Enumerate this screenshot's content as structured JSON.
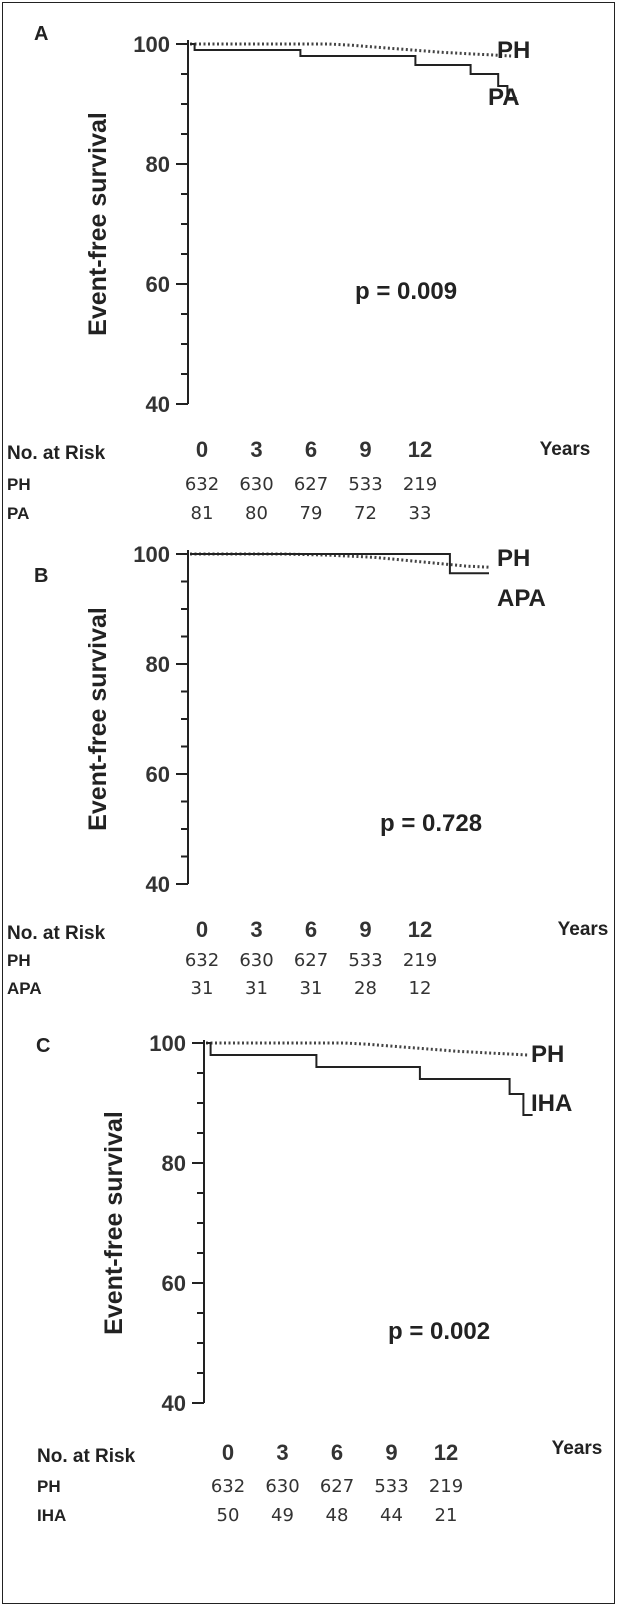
{
  "chart_data": [
    {
      "type": "line",
      "panel": "A",
      "ylabel": "Event-free survival",
      "ylim": [
        40,
        100
      ],
      "yticks": [
        40,
        60,
        80,
        100
      ],
      "xticks": [
        0,
        3,
        6,
        9,
        12
      ],
      "xlabel": "Years",
      "p_value": "p  = 0.009",
      "series": [
        {
          "name": "PH",
          "style": "dotted",
          "x": [
            0,
            2,
            4,
            6,
            7,
            8,
            9,
            10,
            11,
            12,
            13,
            14
          ],
          "y": [
            100,
            100,
            100,
            100,
            99.8,
            99.5,
            99.2,
            98.9,
            98.6,
            98.4,
            98.2,
            98.0
          ]
        },
        {
          "name": "PA",
          "style": "solid",
          "x": [
            0,
            0.2,
            4.8,
            9.8,
            12.2,
            13.4,
            13.8,
            14.2
          ],
          "y": [
            100,
            99,
            98,
            96.5,
            95,
            93,
            91,
            91
          ]
        }
      ],
      "risk_table": {
        "header": "No. at Risk",
        "rows": [
          {
            "label": "PH",
            "values": [
              "632",
              "630",
              "627",
              "533",
              "219"
            ]
          },
          {
            "label": "PA",
            "values": [
              "81",
              "80",
              "79",
              "72",
              "33"
            ]
          }
        ]
      }
    },
    {
      "type": "line",
      "panel": "B",
      "ylabel": "Event-free survival",
      "ylim": [
        40,
        100
      ],
      "yticks": [
        40,
        60,
        80,
        100
      ],
      "xticks": [
        0,
        3,
        6,
        9,
        12
      ],
      "xlabel": "Years",
      "p_value": "p  = 0.728",
      "series": [
        {
          "name": "PH",
          "style": "dotted",
          "x": [
            0,
            4,
            6,
            8,
            9,
            10,
            11,
            12,
            13
          ],
          "y": [
            100,
            100,
            99.8,
            99.4,
            99.0,
            98.6,
            98.2,
            97.8,
            97.6
          ]
        },
        {
          "name": "APA",
          "style": "solid",
          "x": [
            0,
            11.3,
            13
          ],
          "y": [
            100,
            96.5,
            96.5
          ]
        }
      ],
      "risk_table": {
        "header": "No. at Risk",
        "rows": [
          {
            "label": "PH",
            "values": [
              "632",
              "630",
              "627",
              "533",
              "219"
            ]
          },
          {
            "label": "APA",
            "values": [
              "31",
              "31",
              "31",
              "28",
              "12"
            ]
          }
        ]
      }
    },
    {
      "type": "line",
      "panel": "C",
      "ylabel": "Event-free survival",
      "ylim": [
        40,
        100
      ],
      "yticks": [
        40,
        60,
        80,
        100
      ],
      "xticks": [
        0,
        3,
        6,
        9,
        12
      ],
      "xlabel": "Years",
      "p_value": "p  = 0.002",
      "series": [
        {
          "name": "PH",
          "style": "dotted",
          "x": [
            0,
            2,
            4,
            6,
            7,
            8,
            9,
            10,
            11,
            12,
            13,
            14
          ],
          "y": [
            100,
            100,
            100,
            100,
            99.8,
            99.5,
            99.2,
            98.9,
            98.6,
            98.4,
            98.2,
            98.0
          ]
        },
        {
          "name": "IHA",
          "style": "solid",
          "x": [
            0,
            0.2,
            4.8,
            9.3,
            13.2,
            13.8,
            14.2
          ],
          "y": [
            100,
            98,
            96,
            94,
            91.5,
            88,
            88
          ]
        }
      ],
      "risk_table": {
        "header": "No. at Risk",
        "rows": [
          {
            "label": "PH",
            "values": [
              "632",
              "630",
              "627",
              "533",
              "219"
            ]
          },
          {
            "label": "IHA",
            "values": [
              "50",
              "49",
              "48",
              "44",
              "21"
            ]
          }
        ]
      }
    }
  ]
}
